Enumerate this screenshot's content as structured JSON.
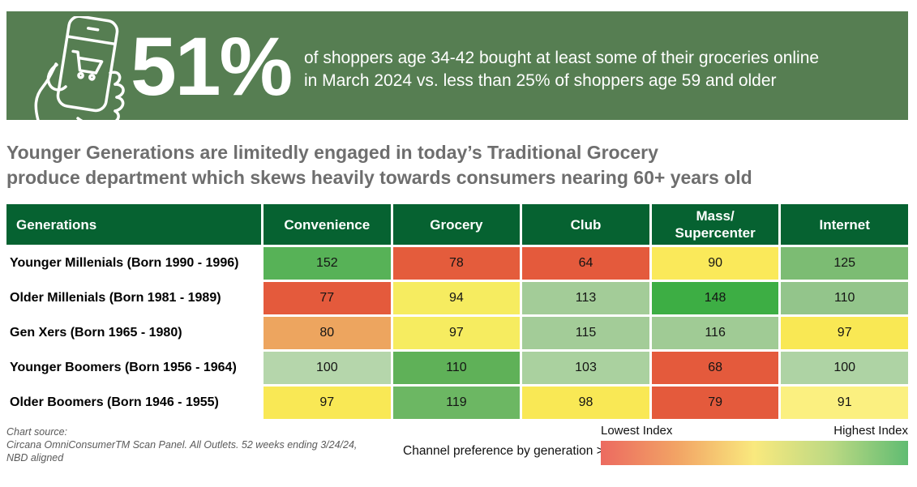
{
  "banner": {
    "bg_color": "#567e52",
    "stat": "51%",
    "description_line1": "of shoppers age 34-42 bought at least some of their groceries online",
    "description_line2": "in March 2024 vs. less than 25% of shoppers age 59 and older",
    "icon": "hand-holding-phone-shopping-cart-icon"
  },
  "headline": {
    "line1": "Younger Generations are limitedly engaged in today’s Traditional Grocery",
    "line2": "produce department which skews heavily towards consumers nearing 60+ years old"
  },
  "chart_data": {
    "type": "heatmap",
    "title": "Younger Generations are limitedly engaged in today’s Traditional Grocery produce department which skews heavily towards consumers nearing 60+ years old",
    "row_header": "Generations",
    "columns": [
      "Convenience",
      "Grocery",
      "Club",
      "Mass/\nSupercenter",
      "Internet"
    ],
    "header_bg": "#066231",
    "rows": [
      {
        "label": "Younger Millenials (Born 1990 - 1996)",
        "values": [
          152,
          78,
          64,
          90,
          125
        ],
        "colors": [
          "#57b257",
          "#e45c3c",
          "#e45a3c",
          "#fae95a",
          "#7cbc73"
        ]
      },
      {
        "label": "Older Millenials (Born 1981 - 1989)",
        "values": [
          77,
          94,
          113,
          148,
          110
        ],
        "colors": [
          "#e45a3c",
          "#f6ec60",
          "#a3cc98",
          "#3dae44",
          "#93c58b"
        ]
      },
      {
        "label": "Gen Xers (Born 1965 - 1980)",
        "values": [
          80,
          97,
          115,
          116,
          97
        ],
        "colors": [
          "#eda55f",
          "#f6ec60",
          "#a3cc98",
          "#a0cb95",
          "#f9e854"
        ]
      },
      {
        "label": "Younger Boomers (Born 1956 - 1964)",
        "values": [
          100,
          110,
          103,
          68,
          100
        ],
        "colors": [
          "#b5d6ab",
          "#5fb158",
          "#aad19f",
          "#e45a3c",
          "#aed3a4"
        ]
      },
      {
        "label": "Older Boomers (Born 1946 - 1955)",
        "values": [
          97,
          119,
          98,
          79,
          91
        ],
        "colors": [
          "#f9e855",
          "#6cb763",
          "#f9e855",
          "#e45a3c",
          "#fbf080"
        ]
      }
    ],
    "legend": {
      "low_label": "Lowest Index",
      "high_label": "Highest Index",
      "gradient": [
        "#ec6a60",
        "#f2a465",
        "#f9e97e",
        "#bcd983",
        "#60bc72"
      ]
    }
  },
  "footer": {
    "source_label": "Chart source:",
    "source_line1": "Circana OmniConsumerTM Scan Panel. All Outlets. 52 weeks ending 3/24/24,",
    "source_line2": "NBD aligned",
    "caption": "Channel preference by generation >"
  }
}
